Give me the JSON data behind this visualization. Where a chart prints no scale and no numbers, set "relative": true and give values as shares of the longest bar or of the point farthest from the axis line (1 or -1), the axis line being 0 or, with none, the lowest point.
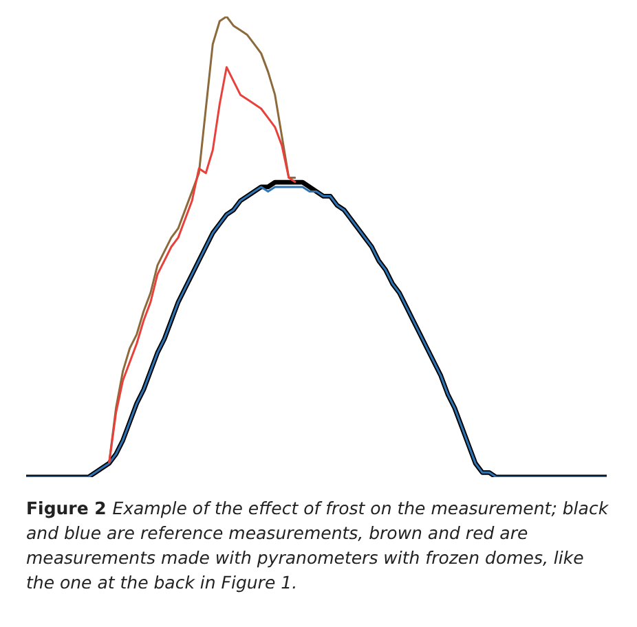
{
  "chart_data": {
    "type": "line",
    "relative": true,
    "categories": [
      null,
      null,
      null,
      null,
      null,
      null,
      null,
      null,
      null,
      null,
      null,
      null,
      null,
      null,
      null,
      null,
      null,
      null,
      null,
      null,
      null,
      null,
      null,
      null,
      null,
      null,
      null,
      null,
      null,
      null,
      null,
      null,
      null,
      null,
      null,
      null,
      null,
      null,
      null,
      null,
      null,
      null,
      null,
      null,
      null,
      null,
      null,
      null,
      null,
      null,
      null,
      null,
      null,
      null,
      null,
      null,
      null,
      null,
      null,
      null,
      null,
      null,
      null,
      null,
      null,
      null,
      null,
      null,
      null,
      null,
      null,
      null,
      null,
      null,
      null,
      null,
      null,
      null,
      null,
      null,
      null,
      null,
      null,
      null,
      null
    ],
    "series": [
      {
        "color": "#000000",
        "values": [
          0,
          0,
          0,
          0,
          0,
          0,
          0,
          0,
          0,
          0,
          0.01,
          0.02,
          0.03,
          0.05,
          0.08,
          0.12,
          0.16,
          0.19,
          0.23,
          0.27,
          0.3,
          0.34,
          0.38,
          0.41,
          0.44,
          0.47,
          0.5,
          0.53,
          0.55,
          0.57,
          0.58,
          0.6,
          0.61,
          0.62,
          0.63,
          0.63,
          0.64,
          0.64,
          0.64,
          0.64,
          0.64,
          0.63,
          0.62,
          0.61,
          0.61,
          0.59,
          0.58,
          0.56,
          0.54,
          0.52,
          0.5,
          0.47,
          0.45,
          0.42,
          0.4,
          0.37,
          0.34,
          0.31,
          0.28,
          0.25,
          0.22,
          0.18,
          0.15,
          0.11,
          0.07,
          0.03,
          0.01,
          0.01,
          0,
          0,
          0,
          0,
          0,
          0,
          0,
          0,
          0,
          0,
          0,
          0,
          0,
          0,
          0,
          0,
          0
        ]
      },
      {
        "color": "#2e75b6",
        "values": [
          0,
          0,
          0,
          0,
          0,
          0,
          0,
          0,
          0,
          0,
          0.01,
          0.02,
          0.03,
          0.05,
          0.08,
          0.12,
          0.16,
          0.19,
          0.23,
          0.27,
          0.3,
          0.34,
          0.38,
          0.41,
          0.44,
          0.47,
          0.5,
          0.53,
          0.55,
          0.57,
          0.58,
          0.6,
          0.61,
          0.62,
          0.63,
          0.62,
          0.63,
          0.63,
          0.63,
          0.63,
          0.63,
          0.62,
          0.62,
          0.61,
          0.61,
          0.59,
          0.58,
          0.56,
          0.54,
          0.52,
          0.5,
          0.47,
          0.45,
          0.42,
          0.4,
          0.37,
          0.34,
          0.31,
          0.28,
          0.25,
          0.22,
          0.18,
          0.15,
          0.11,
          0.07,
          0.03,
          0.01,
          0.01,
          0,
          0,
          0,
          0,
          0,
          0,
          0,
          0,
          0,
          0,
          0,
          0,
          0,
          0,
          0,
          0,
          0
        ]
      },
      {
        "color": "#8c6a3c",
        "values": [
          null,
          null,
          null,
          null,
          null,
          null,
          null,
          null,
          null,
          null,
          null,
          null,
          0.03,
          0.15,
          0.23,
          0.28,
          0.31,
          0.36,
          0.4,
          0.46,
          0.49,
          0.52,
          0.54,
          0.58,
          0.62,
          0.66,
          0.8,
          0.94,
          0.99,
          1,
          0.98,
          0.97,
          0.96,
          0.94,
          0.92,
          0.88,
          0.83,
          0.74,
          0.65,
          0.65,
          null,
          null,
          null,
          null,
          null,
          null,
          null,
          null,
          null,
          null,
          null,
          null,
          null,
          null,
          null,
          null,
          null,
          null,
          null,
          null,
          null,
          null,
          null,
          null,
          null,
          null,
          null,
          null,
          null,
          null,
          null,
          null,
          null,
          null,
          null,
          null,
          null,
          null,
          null,
          null,
          null,
          null,
          null,
          null,
          null
        ]
      },
      {
        "color": "#e8413c",
        "values": [
          null,
          null,
          null,
          null,
          null,
          null,
          null,
          null,
          null,
          null,
          null,
          null,
          0.03,
          0.14,
          0.21,
          0.25,
          0.29,
          0.34,
          0.38,
          0.44,
          0.47,
          0.5,
          0.52,
          0.56,
          0.6,
          0.67,
          0.66,
          0.71,
          0.81,
          0.89,
          0.86,
          0.83,
          0.82,
          0.81,
          0.8,
          0.78,
          0.76,
          0.72,
          0.65,
          0.64,
          null,
          null,
          null,
          null,
          null,
          null,
          null,
          null,
          null,
          null,
          null,
          null,
          null,
          null,
          null,
          null,
          null,
          null,
          null,
          null,
          null,
          null,
          null,
          null,
          null,
          null,
          null,
          null,
          null,
          null,
          null,
          null,
          null,
          null,
          null,
          null,
          null,
          null,
          null,
          null,
          null,
          null,
          null,
          null,
          null
        ]
      }
    ],
    "annotations": [
      "Figure 2",
      "Example of the effect of frost on the measurement; black and blue are reference measurements, brown and red are measurements made with pyranometers with frozen domes, like the one at the back in Figure 1."
    ]
  }
}
